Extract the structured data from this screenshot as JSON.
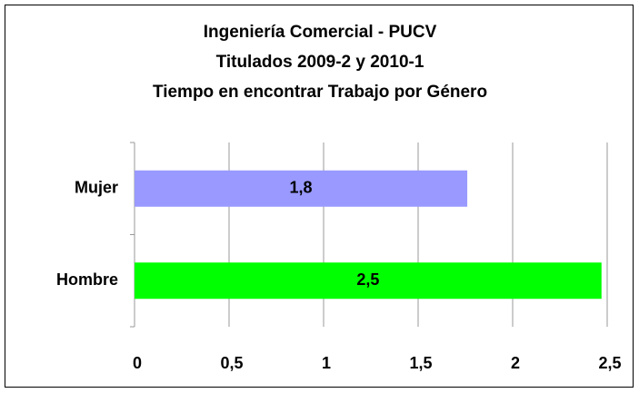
{
  "chart_data": {
    "type": "bar",
    "orientation": "horizontal",
    "title": [
      "Ingeniería Comercial - PUCV",
      "Titulados 2009-2 y 2010-1",
      "Tiempo en encontrar Trabajo por Género"
    ],
    "categories": [
      "Mujer",
      "Hombre"
    ],
    "values": [
      1.76,
      2.47
    ],
    "value_labels": [
      "1,8",
      "2,5"
    ],
    "colors": [
      "#9999ff",
      "#00ff00"
    ],
    "xlim": [
      0,
      2.5
    ],
    "xticks": [
      0,
      {
        "value": 0.5,
        "label": "0,5"
      },
      1,
      {
        "value": 1.5,
        "label": "1,5"
      },
      2,
      {
        "value": 2.5,
        "label": "2,5"
      }
    ],
    "grid": true
  }
}
